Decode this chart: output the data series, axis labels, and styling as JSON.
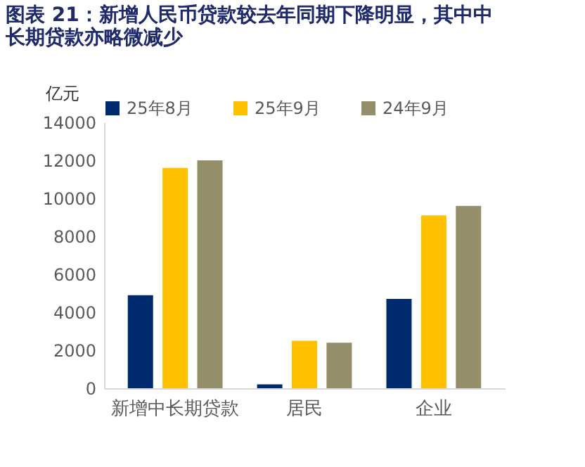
{
  "chart_data": {
    "type": "bar",
    "title": "图表 21：新增人民币贷款较去年同期下降明显，其中中长期贷款亦略微减少",
    "ylabel": "亿元",
    "categories": [
      "新增中长期贷款",
      "居民",
      "企业"
    ],
    "series": [
      {
        "name": "25年8月",
        "color": "#002a6e",
        "values": [
          4900,
          200,
          4700
        ]
      },
      {
        "name": "25年9月",
        "color": "#ffc000",
        "values": [
          11600,
          2500,
          9100
        ]
      },
      {
        "name": "24年9月",
        "color": "#948f6a",
        "values": [
          12000,
          2400,
          9600
        ]
      }
    ],
    "ylim": [
      0,
      14000
    ],
    "yticks": [
      0,
      2000,
      4000,
      6000,
      8000,
      10000,
      12000,
      14000
    ],
    "grid": false,
    "legend": "top"
  }
}
